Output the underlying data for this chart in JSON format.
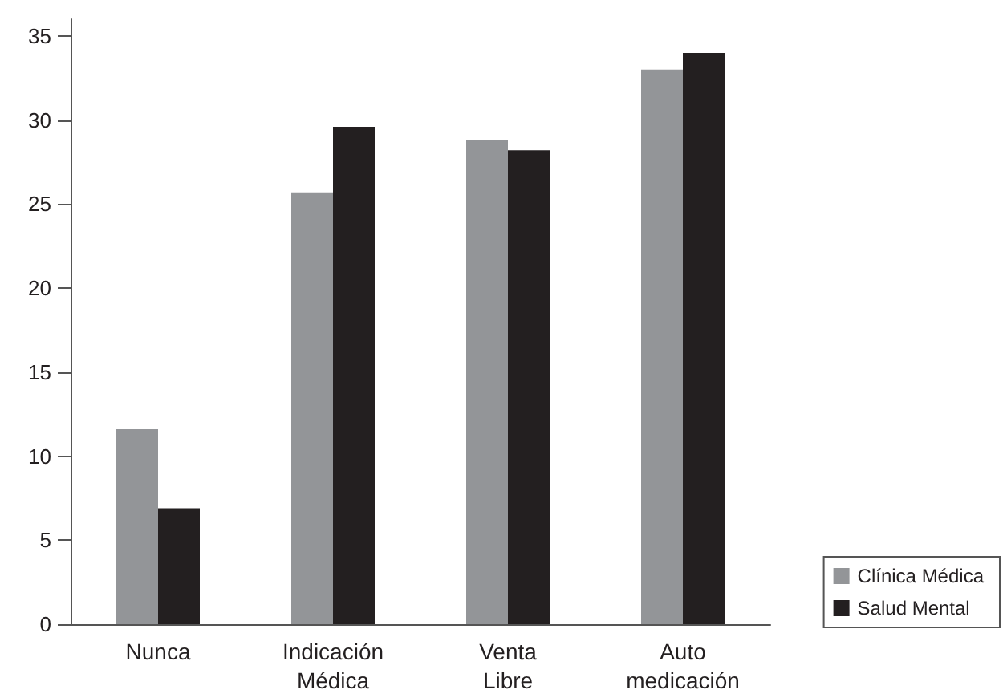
{
  "chart_data": {
    "type": "bar",
    "categories": [
      "Nunca",
      "Indicación Médica",
      "Venta Libre",
      "Auto medicación"
    ],
    "series": [
      {
        "name": "Clínica Médica",
        "color": "#939598",
        "values": [
          11.6,
          25.7,
          28.8,
          33.0
        ]
      },
      {
        "name": "Salud Mental",
        "color": "#231f20",
        "values": [
          6.9,
          29.6,
          28.2,
          34.0
        ]
      }
    ],
    "ylim": [
      0,
      36
    ],
    "yticks": [
      0,
      5,
      10,
      15,
      20,
      25,
      30,
      35
    ],
    "grid": false,
    "legend": "bottom right"
  }
}
